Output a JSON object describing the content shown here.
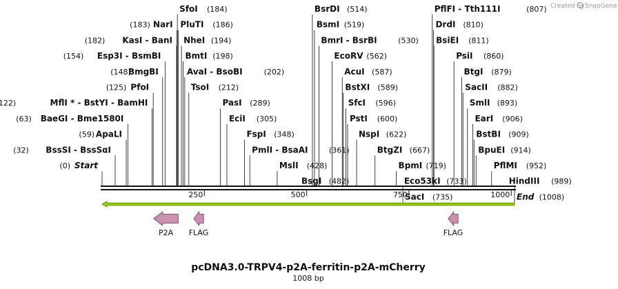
{
  "branding": {
    "text": "Created by",
    "brand": "SnapGene"
  },
  "title": "pcDNA3.0-TRPV4-p2A-ferritin-p2A-mCherry",
  "subtitle": "1008 bp",
  "sequence_length": 1008,
  "axis_ticks": [
    250,
    500,
    750,
    1000
  ],
  "colors": {
    "feature": "#c993b0",
    "orf": "#96d000",
    "line": "#111111"
  },
  "sites": [
    {
      "id": "start",
      "name": "Start",
      "italic": true,
      "pos": 0,
      "pos_label": "(0)",
      "side": "left",
      "tier": 0
    },
    {
      "id": "bsssi",
      "name": "BssSI  -  BssSαI",
      "pos": 32,
      "pos_label": "(32)",
      "side": "left",
      "tier": 1
    },
    {
      "id": "apali",
      "name": "ApaLI",
      "pos": 59,
      "pos_label": "(59)",
      "side": "left",
      "tier": 2
    },
    {
      "id": "baegi",
      "name": "BaeGI  -  Bme1580I",
      "pos": 63,
      "pos_label": "(63)",
      "side": "left",
      "tier": 3
    },
    {
      "id": "mfli",
      "name": "MflI *  -  BstYI  -  BamHI",
      "pos": 122,
      "pos_label": "(122)",
      "side": "left",
      "tier": 4
    },
    {
      "id": "pfoi",
      "name": "PfoI",
      "pos": 125,
      "pos_label": "(125)",
      "side": "left",
      "tier": 5
    },
    {
      "id": "bmgbi",
      "name": "BmgBI",
      "pos": 148,
      "pos_label": "(148)",
      "side": "left",
      "tier": 6
    },
    {
      "id": "esp3i",
      "name": "Esp3I  -  BsmBI",
      "pos": 154,
      "pos_label": "(154)",
      "side": "left",
      "tier": 7
    },
    {
      "id": "kasi",
      "name": "KasI  -  BanI",
      "pos": 182,
      "pos_label": "(182)",
      "side": "left",
      "tier": 8
    },
    {
      "id": "nari",
      "name": "NarI",
      "pos": 183,
      "pos_label": "(183)",
      "side": "left",
      "tier": 9
    },
    {
      "id": "sfoi",
      "name": "SfoI",
      "pos": 184,
      "pos_label": "(184)",
      "side": "right",
      "tier": 10
    },
    {
      "id": "pluti",
      "name": "PluTI",
      "pos": 186,
      "pos_label": "(186)",
      "side": "right",
      "tier": 9
    },
    {
      "id": "nhei",
      "name": "NheI",
      "pos": 194,
      "pos_label": "(194)",
      "side": "right",
      "tier": 8
    },
    {
      "id": "bmti",
      "name": "BmtI",
      "pos": 198,
      "pos_label": "(198)",
      "side": "right",
      "tier": 7
    },
    {
      "id": "avai",
      "name": "AvaI  -  BsoBI",
      "pos": 202,
      "pos_label": "(202)",
      "side": "right",
      "tier": 6
    },
    {
      "id": "tsoi",
      "name": "TsoI",
      "pos": 212,
      "pos_label": "(212)",
      "side": "right",
      "tier": 5
    },
    {
      "id": "pasi",
      "name": "PasI",
      "pos": 289,
      "pos_label": "(289)",
      "side": "right",
      "tier": 4
    },
    {
      "id": "ecii",
      "name": "EciI",
      "pos": 305,
      "pos_label": "(305)",
      "side": "right",
      "tier": 3
    },
    {
      "id": "fspi",
      "name": "FspI",
      "pos": 348,
      "pos_label": "(348)",
      "side": "right",
      "tier": 2
    },
    {
      "id": "pmli",
      "name": "PmlI  -  BsaAI",
      "pos": 361,
      "pos_label": "(361)",
      "side": "right",
      "tier": 1
    },
    {
      "id": "msli",
      "name": "MslI",
      "pos": 428,
      "pos_label": "(428)",
      "side": "right",
      "tier": 0
    },
    {
      "id": "bsgi",
      "name": "BsgI",
      "pos": 482,
      "pos_label": "(482)",
      "side": "right",
      "tier": -1
    },
    {
      "id": "bsrdi",
      "name": "BsrDI",
      "pos": 514,
      "pos_label": "(514)",
      "side": "right",
      "tier": 10
    },
    {
      "id": "bsmi",
      "name": "BsmI",
      "pos": 519,
      "pos_label": "(519)",
      "side": "right",
      "tier": 9
    },
    {
      "id": "bmri",
      "name": "BmrI  -  BsrBI",
      "pos": 530,
      "pos_label": "(530)",
      "side": "right",
      "tier": 8
    },
    {
      "id": "ecorv",
      "name": "EcoRV",
      "pos": 562,
      "pos_label": "(562)",
      "side": "right",
      "tier": 7
    },
    {
      "id": "acui",
      "name": "AcuI",
      "pos": 587,
      "pos_label": "(587)",
      "side": "right",
      "tier": 6
    },
    {
      "id": "bstxi",
      "name": "BstXI",
      "pos": 589,
      "pos_label": "(589)",
      "side": "right",
      "tier": 5
    },
    {
      "id": "sfci",
      "name": "SfcI",
      "pos": 596,
      "pos_label": "(596)",
      "side": "right",
      "tier": 4
    },
    {
      "id": "psti",
      "name": "PstI",
      "pos": 600,
      "pos_label": "(600)",
      "side": "right",
      "tier": 3
    },
    {
      "id": "nspi",
      "name": "NspI",
      "pos": 622,
      "pos_label": "(622)",
      "side": "right",
      "tier": 2
    },
    {
      "id": "btgzi",
      "name": "BtgZI",
      "pos": 667,
      "pos_label": "(667)",
      "side": "right",
      "tier": 1
    },
    {
      "id": "bpmi",
      "name": "BpmI",
      "pos": 719,
      "pos_label": "(719)",
      "side": "right",
      "tier": 0
    },
    {
      "id": "eco53ki",
      "name": "Eco53kI",
      "pos": 733,
      "pos_label": "(733)",
      "side": "right",
      "tier": -1
    },
    {
      "id": "saci",
      "name": "SacI",
      "pos": 735,
      "pos_label": "(735)",
      "side": "right",
      "tier": -2
    },
    {
      "id": "pflfi",
      "name": "PflFI  -  Tth111I",
      "pos": 807,
      "pos_label": "(807)",
      "side": "right",
      "tier": 10
    },
    {
      "id": "drdi",
      "name": "DrdI",
      "pos": 810,
      "pos_label": "(810)",
      "side": "right",
      "tier": 9
    },
    {
      "id": "bslei",
      "name": "BsiEI",
      "pos": 811,
      "pos_label": "(811)",
      "side": "right",
      "tier": 8
    },
    {
      "id": "psii",
      "name": "PsiI",
      "pos": 860,
      "pos_label": "(860)",
      "side": "right",
      "tier": 7
    },
    {
      "id": "btgi",
      "name": "BtgI",
      "pos": 879,
      "pos_label": "(879)",
      "side": "right",
      "tier": 6
    },
    {
      "id": "sacii",
      "name": "SacII",
      "pos": 882,
      "pos_label": "(882)",
      "side": "right",
      "tier": 5
    },
    {
      "id": "smli",
      "name": "SmlI",
      "pos": 893,
      "pos_label": "(893)",
      "side": "right",
      "tier": 4
    },
    {
      "id": "eari",
      "name": "EarI",
      "pos": 906,
      "pos_label": "(906)",
      "side": "right",
      "tier": 3
    },
    {
      "id": "bstbi",
      "name": "BstBI",
      "pos": 909,
      "pos_label": "(909)",
      "side": "right",
      "tier": 2
    },
    {
      "id": "bpuei",
      "name": "BpuEI",
      "pos": 914,
      "pos_label": "(914)",
      "side": "right",
      "tier": 1
    },
    {
      "id": "pflmi",
      "name": "PflMI",
      "pos": 952,
      "pos_label": "(952)",
      "side": "right",
      "tier": 0
    },
    {
      "id": "hindiii",
      "name": "HindIII",
      "pos": 989,
      "pos_label": "(989)",
      "side": "right",
      "tier": -1
    },
    {
      "id": "end",
      "name": "End",
      "italic": true,
      "pos": 1008,
      "pos_label": "(1008)",
      "side": "right",
      "tier": -2
    }
  ],
  "orf": {
    "name": "orf",
    "start": 0,
    "end": 1008,
    "direction": "reverse"
  },
  "features": [
    {
      "id": "p2a",
      "name": "P2A",
      "start": 126,
      "end": 186,
      "direction": "reverse"
    },
    {
      "id": "flag1",
      "name": "FLAG",
      "start": 224,
      "end": 248,
      "direction": "reverse"
    },
    {
      "id": "flag2",
      "name": "FLAG",
      "start": 846,
      "end": 870,
      "direction": "reverse"
    }
  ]
}
